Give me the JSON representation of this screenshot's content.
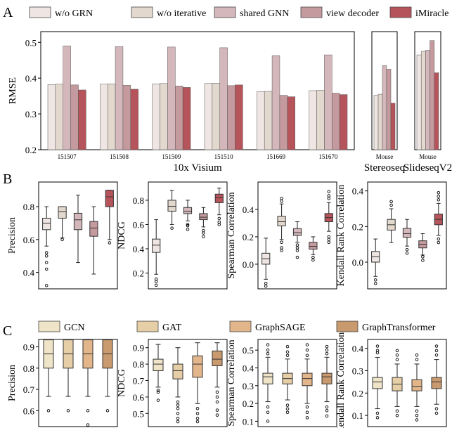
{
  "panels": [
    "A",
    "B",
    "C"
  ],
  "colors": {
    "A": [
      "#efe6e4",
      "#e3d8cd",
      "#d4b7bb",
      "#c59a9e",
      "#b5545a"
    ],
    "C": [
      "#efe4c8",
      "#e6cfa6",
      "#e2b68a",
      "#c99a6e"
    ]
  },
  "chart_data": [
    {
      "id": "A_visium",
      "type": "bar",
      "ylabel": "RMSE",
      "xlabel": "10x Visium",
      "ylim": [
        0.2,
        0.53
      ],
      "yticks": [
        0.2,
        0.3,
        0.4,
        0.5
      ],
      "categories": [
        "151507",
        "151508",
        "151509",
        "151510",
        "151669",
        "151670"
      ],
      "series": [
        {
          "name": "w/o GRN",
          "values": [
            0.382,
            0.383,
            0.384,
            0.385,
            0.362,
            0.365
          ]
        },
        {
          "name": "w/o iterative",
          "values": [
            0.383,
            0.384,
            0.385,
            0.386,
            0.363,
            0.366
          ]
        },
        {
          "name": "shared GNN",
          "values": [
            0.49,
            0.488,
            0.487,
            0.485,
            0.463,
            0.465
          ]
        },
        {
          "name": "view decoder",
          "values": [
            0.381,
            0.38,
            0.378,
            0.379,
            0.352,
            0.358
          ]
        },
        {
          "name": "iMiracle",
          "values": [
            0.367,
            0.369,
            0.374,
            0.381,
            0.348,
            0.354
          ]
        }
      ]
    },
    {
      "id": "A_stereoseq",
      "type": "bar",
      "xlabel": "Stereoseq",
      "ylim": [
        0.2,
        0.53
      ],
      "categories": [
        "Mouse"
      ],
      "series": [
        {
          "name": "w/o GRN",
          "values": [
            0.352
          ]
        },
        {
          "name": "w/o iterative",
          "values": [
            0.355
          ]
        },
        {
          "name": "shared GNN",
          "values": [
            0.435
          ]
        },
        {
          "name": "view decoder",
          "values": [
            0.425
          ]
        },
        {
          "name": "iMiracle",
          "values": [
            0.33
          ]
        }
      ]
    },
    {
      "id": "A_slideseq",
      "type": "bar",
      "xlabel": "SlideseqV2",
      "ylim": [
        0.2,
        0.53
      ],
      "categories": [
        "Mouse"
      ],
      "series": [
        {
          "name": "w/o GRN",
          "values": [
            0.465
          ]
        },
        {
          "name": "w/o iterative",
          "values": [
            0.475
          ]
        },
        {
          "name": "shared GNN",
          "values": [
            0.478
          ]
        },
        {
          "name": "view decoder",
          "values": [
            0.505
          ]
        },
        {
          "name": "iMiracle",
          "values": [
            0.415
          ]
        }
      ]
    },
    {
      "id": "B_precision",
      "type": "box",
      "panel": "B",
      "ylabel": "Precision",
      "ylim": [
        0.3,
        0.95
      ],
      "yticks": [
        0.4,
        0.6,
        0.8
      ],
      "boxes": [
        {
          "min": 0.56,
          "q1": 0.66,
          "median": 0.7,
          "q3": 0.73,
          "max": 0.8,
          "outliers": [
            0.52,
            0.5,
            0.46,
            0.42,
            0.32
          ]
        },
        {
          "min": 0.61,
          "q1": 0.73,
          "median": 0.77,
          "q3": 0.8,
          "max": 0.8,
          "outliers": [
            0.6
          ]
        },
        {
          "min": 0.46,
          "q1": 0.66,
          "median": 0.72,
          "q3": 0.76,
          "max": 0.87,
          "outliers": []
        },
        {
          "min": 0.39,
          "q1": 0.62,
          "median": 0.67,
          "q3": 0.71,
          "max": 0.8,
          "outliers": []
        },
        {
          "min": 0.6,
          "q1": 0.8,
          "median": 0.86,
          "q3": 0.9,
          "max": 0.9,
          "outliers": [
            0.58
          ]
        }
      ]
    },
    {
      "id": "B_ndcg",
      "type": "box",
      "panel": "B",
      "ylabel": "NDCG",
      "ylim": [
        0.07,
        0.95
      ],
      "yticks": [
        0.2,
        0.4,
        0.6,
        0.8
      ],
      "boxes": [
        {
          "min": 0.19,
          "q1": 0.37,
          "median": 0.43,
          "q3": 0.48,
          "max": 0.64,
          "outliers": [
            0.15,
            0.13,
            0.1
          ]
        },
        {
          "min": 0.6,
          "q1": 0.71,
          "median": 0.75,
          "q3": 0.8,
          "max": 0.88,
          "outliers": [
            0.57
          ]
        },
        {
          "min": 0.63,
          "q1": 0.69,
          "median": 0.71,
          "q3": 0.74,
          "max": 0.8,
          "outliers": [
            0.6,
            0.59,
            0.56
          ]
        },
        {
          "min": 0.58,
          "q1": 0.64,
          "median": 0.66,
          "q3": 0.69,
          "max": 0.74,
          "outliers": [
            0.55,
            0.53,
            0.5
          ]
        },
        {
          "min": 0.68,
          "q1": 0.78,
          "median": 0.82,
          "q3": 0.85,
          "max": 0.9,
          "outliers": [
            0.65,
            0.62,
            0.6
          ]
        }
      ]
    },
    {
      "id": "B_spearman",
      "type": "box",
      "panel": "B",
      "ylabel": "Spearman Correlation",
      "ylim": [
        -0.18,
        0.6
      ],
      "yticks": [
        0.0,
        0.2,
        0.4
      ],
      "boxes": [
        {
          "min": -0.11,
          "q1": 0.0,
          "median": 0.04,
          "q3": 0.08,
          "max": 0.19,
          "outliers": [
            -0.14,
            -0.16
          ]
        },
        {
          "min": 0.18,
          "q1": 0.28,
          "median": 0.31,
          "q3": 0.35,
          "max": 0.44,
          "outliers": [
            0.46,
            0.48,
            0.16,
            0.12,
            0.1
          ]
        },
        {
          "min": 0.16,
          "q1": 0.21,
          "median": 0.23,
          "q3": 0.26,
          "max": 0.31,
          "outliers": [
            0.14,
            0.12,
            0.1,
            0.05
          ]
        },
        {
          "min": 0.07,
          "q1": 0.11,
          "median": 0.13,
          "q3": 0.16,
          "max": 0.2,
          "outliers": [
            0.05,
            0.03
          ]
        },
        {
          "min": 0.24,
          "q1": 0.31,
          "median": 0.34,
          "q3": 0.37,
          "max": 0.45,
          "outliers": [
            0.48,
            0.5,
            0.53,
            0.2,
            0.18,
            0.16
          ]
        }
      ]
    },
    {
      "id": "B_kendall",
      "type": "box",
      "panel": "B",
      "ylabel": "Kendall Rank Correlation",
      "ylim": [
        -0.15,
        0.45
      ],
      "yticks": [
        0.0,
        0.2,
        0.4
      ],
      "boxes": [
        {
          "min": -0.08,
          "q1": 0.0,
          "median": 0.03,
          "q3": 0.06,
          "max": 0.13,
          "outliers": [
            -0.1,
            -0.12
          ]
        },
        {
          "min": 0.11,
          "q1": 0.18,
          "median": 0.21,
          "q3": 0.24,
          "max": 0.3,
          "outliers": [
            0.32,
            0.34
          ]
        },
        {
          "min": 0.09,
          "q1": 0.14,
          "median": 0.16,
          "q3": 0.19,
          "max": 0.24,
          "outliers": [
            0.07,
            0.05
          ]
        },
        {
          "min": 0.04,
          "q1": 0.08,
          "median": 0.1,
          "q3": 0.12,
          "max": 0.16,
          "outliers": [
            0.03,
            0.01
          ]
        },
        {
          "min": 0.15,
          "q1": 0.21,
          "median": 0.24,
          "q3": 0.27,
          "max": 0.33,
          "outliers": [
            0.35,
            0.37,
            0.39,
            0.13,
            0.11
          ]
        }
      ]
    },
    {
      "id": "C_precision",
      "type": "box",
      "panel": "C",
      "ylabel": "Precision",
      "series": [
        "GCN",
        "GAT",
        "GraphSAGE",
        "GraphTransformer"
      ],
      "ylim": [
        0.525,
        0.935
      ],
      "yticks": [
        0.6,
        0.7,
        0.8,
        0.9
      ],
      "boxes": [
        {
          "min": 0.667,
          "q1": 0.8,
          "median": 0.867,
          "q3": 0.933,
          "max": 0.933,
          "outliers": [
            0.6
          ]
        },
        {
          "min": 0.667,
          "q1": 0.8,
          "median": 0.867,
          "q3": 0.933,
          "max": 0.933,
          "outliers": [
            0.6
          ]
        },
        {
          "min": 0.667,
          "q1": 0.8,
          "median": 0.867,
          "q3": 0.933,
          "max": 0.933,
          "outliers": [
            0.6,
            0.533
          ]
        },
        {
          "min": 0.667,
          "q1": 0.8,
          "median": 0.867,
          "q3": 0.933,
          "max": 0.933,
          "outliers": [
            0.6
          ]
        }
      ]
    },
    {
      "id": "C_ndcg",
      "type": "box",
      "panel": "C",
      "ylabel": "NDCG",
      "series": [
        "GCN",
        "GAT",
        "GraphSAGE",
        "GraphTransformer"
      ],
      "ylim": [
        0.42,
        0.95
      ],
      "yticks": [
        0.5,
        0.6,
        0.7,
        0.8,
        0.9
      ],
      "boxes": [
        {
          "min": 0.66,
          "q1": 0.76,
          "median": 0.8,
          "q3": 0.83,
          "max": 0.92,
          "outliers": [
            0.64,
            0.63,
            0.58
          ]
        },
        {
          "min": 0.6,
          "q1": 0.71,
          "median": 0.76,
          "q3": 0.8,
          "max": 0.9,
          "outliers": [
            0.57,
            0.55,
            0.53,
            0.5,
            0.47,
            0.45
          ]
        },
        {
          "min": 0.56,
          "q1": 0.72,
          "median": 0.8,
          "q3": 0.85,
          "max": 0.93,
          "outliers": [
            0.53,
            0.5,
            0.47,
            0.45
          ]
        },
        {
          "min": 0.66,
          "q1": 0.79,
          "median": 0.83,
          "q3": 0.88,
          "max": 0.93,
          "outliers": [
            0.63,
            0.6,
            0.57,
            0.52,
            0.49
          ]
        }
      ]
    },
    {
      "id": "C_spearman",
      "type": "box",
      "panel": "C",
      "ylabel": "Spearman Correlation",
      "series": [
        "GCN",
        "GAT",
        "GraphSAGE",
        "GraphTransformer"
      ],
      "ylim": [
        0.07,
        0.56
      ],
      "yticks": [
        0.1,
        0.2,
        0.3,
        0.4,
        0.5
      ],
      "boxes": [
        {
          "min": 0.21,
          "q1": 0.31,
          "median": 0.35,
          "q3": 0.37,
          "max": 0.46,
          "outliers": [
            0.48,
            0.5,
            0.53,
            0.18,
            0.15,
            0.1
          ]
        },
        {
          "min": 0.22,
          "q1": 0.31,
          "median": 0.34,
          "q3": 0.37,
          "max": 0.45,
          "outliers": [
            0.47,
            0.49,
            0.52,
            0.19,
            0.17,
            0.15
          ]
        },
        {
          "min": 0.2,
          "q1": 0.3,
          "median": 0.34,
          "q3": 0.37,
          "max": 0.45,
          "outliers": [
            0.47,
            0.5,
            0.53,
            0.18,
            0.15,
            0.12
          ]
        },
        {
          "min": 0.21,
          "q1": 0.31,
          "median": 0.35,
          "q3": 0.37,
          "max": 0.46,
          "outliers": [
            0.48,
            0.5,
            0.52,
            0.18,
            0.16,
            0.13
          ]
        }
      ]
    },
    {
      "id": "C_kendall",
      "type": "box",
      "panel": "C",
      "ylabel": "Kendall Rank Correlation",
      "series": [
        "GCN",
        "GAT",
        "GraphSAGE",
        "GraphTransformer"
      ],
      "ylim": [
        0.05,
        0.44
      ],
      "yticks": [
        0.1,
        0.2,
        0.3,
        0.4
      ],
      "boxes": [
        {
          "min": 0.13,
          "q1": 0.22,
          "median": 0.25,
          "q3": 0.27,
          "max": 0.36,
          "outliers": [
            0.38,
            0.39,
            0.41,
            0.11,
            0.09
          ]
        },
        {
          "min": 0.14,
          "q1": 0.21,
          "median": 0.24,
          "q3": 0.27,
          "max": 0.33,
          "outliers": [
            0.35,
            0.37,
            0.39,
            0.12,
            0.1
          ]
        },
        {
          "min": 0.14,
          "q1": 0.21,
          "median": 0.23,
          "q3": 0.26,
          "max": 0.33,
          "outliers": [
            0.35,
            0.37,
            0.12,
            0.1,
            0.08
          ]
        },
        {
          "min": 0.15,
          "q1": 0.22,
          "median": 0.25,
          "q3": 0.27,
          "max": 0.35,
          "outliers": [
            0.37,
            0.39,
            0.41,
            0.13,
            0.11
          ]
        }
      ]
    }
  ]
}
